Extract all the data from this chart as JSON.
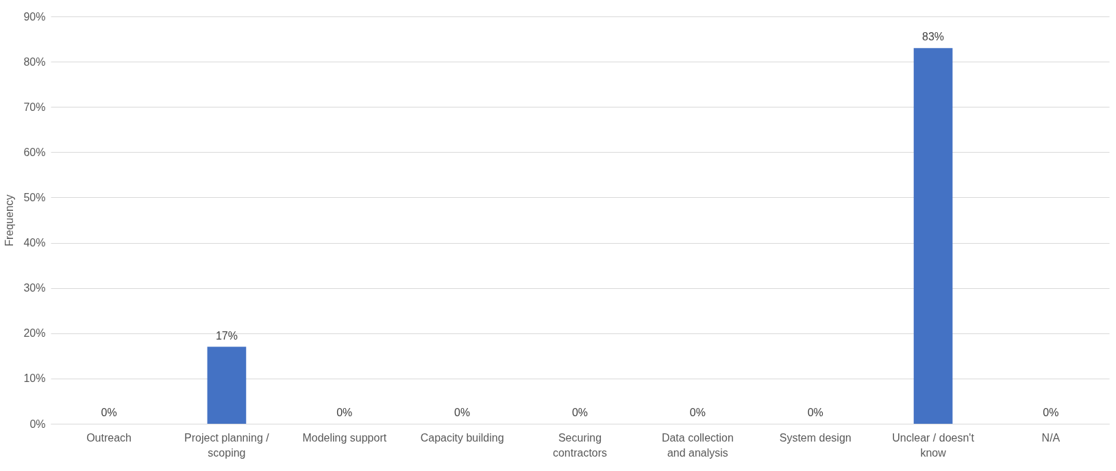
{
  "chart_data": {
    "type": "bar",
    "ylabel": "Frequency",
    "categories": [
      "Outreach",
      "Project planning / scoping",
      "Modeling support",
      "Capacity building",
      "Securing contractors",
      "Data collection and analysis",
      "System design",
      "Unclear / doesn't know",
      "N/A"
    ],
    "values": [
      0,
      17,
      0,
      0,
      0,
      0,
      0,
      83,
      0
    ],
    "value_labels": [
      "0%",
      "17%",
      "0%",
      "0%",
      "0%",
      "0%",
      "0%",
      "83%",
      "0%"
    ],
    "color": "#4472c4",
    "ylim": [
      0,
      90
    ],
    "yticks": [
      {
        "value": 0,
        "label": "0%"
      },
      {
        "value": 10,
        "label": "10%"
      },
      {
        "value": 20,
        "label": "20%"
      },
      {
        "value": 30,
        "label": "30%"
      },
      {
        "value": 40,
        "label": "40%"
      },
      {
        "value": 50,
        "label": "50%"
      },
      {
        "value": 60,
        "label": "60%"
      },
      {
        "value": 70,
        "label": "70%"
      },
      {
        "value": 80,
        "label": "80%"
      },
      {
        "value": 90,
        "label": "90%"
      }
    ],
    "grid": "y"
  }
}
